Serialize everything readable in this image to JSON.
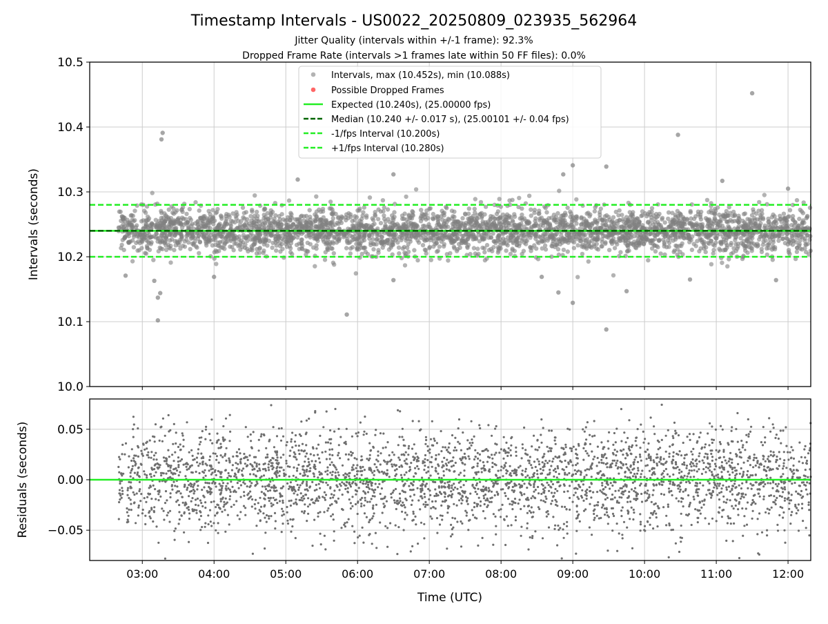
{
  "chart_data": {
    "type": "scatter",
    "title": "Timestamp Intervals - US0022_20250809_023935_562964",
    "subtitle_lines": [
      "Jitter Quality (intervals within +/-1 frame): 92.3%",
      "Dropped Frame Rate (intervals >1 frames late within 50 FF files): 0.0%"
    ],
    "xlabel": "Time (UTC)",
    "xticks": [
      "03:00",
      "04:00",
      "05:00",
      "06:00",
      "07:00",
      "08:00",
      "09:00",
      "10:00",
      "11:00",
      "12:00"
    ],
    "xlim": [
      "02:16",
      "12:19"
    ],
    "grid": true,
    "legend_placement": "top-center",
    "colors": {
      "points": "#808080",
      "dropped": "#ff6666",
      "expected": "#22ee22",
      "median": "#006400",
      "bounds": "#22ee22"
    },
    "top_panel": {
      "ylabel": "Intervals (seconds)",
      "ylim": [
        10.0,
        10.5
      ],
      "yticks": [
        "10.0",
        "10.1",
        "10.2",
        "10.3",
        "10.4",
        "10.5"
      ],
      "legend": [
        "Intervals, max (10.452s), min (10.088s)",
        "Possible Dropped Frames",
        "Expected (10.240s), (25.00000 fps)",
        "Median (10.240 +/- 0.017 s), (25.00101 +/- 0.04 fps)",
        "-1/fps Interval (10.200s)",
        "+1/fps Interval (10.280s)"
      ],
      "reference_lines": {
        "expected": 10.24,
        "median": 10.24,
        "lower": 10.2,
        "upper": 10.28
      },
      "series": [
        {
          "name": "Intervals, max (10.452s), min (10.088s)",
          "time_range": [
            "02:40",
            "12:19"
          ],
          "center": 10.24,
          "std": 0.017,
          "sample_count": 3400,
          "notable_points": [
            [
              "11:30",
              10.452
            ],
            [
              "03:17",
              10.391
            ],
            [
              "03:16",
              10.381
            ],
            [
              "10:28",
              10.388
            ],
            [
              "09:00",
              10.341
            ],
            [
              "09:28",
              10.339
            ],
            [
              "08:52",
              10.327
            ],
            [
              "06:30",
              10.327
            ],
            [
              "03:13",
              10.102
            ],
            [
              "03:13",
              10.137
            ],
            [
              "03:15",
              10.144
            ],
            [
              "05:51",
              10.111
            ],
            [
              "09:00",
              10.129
            ],
            [
              "08:48",
              10.145
            ],
            [
              "09:28",
              10.088
            ],
            [
              "03:10",
              10.163
            ],
            [
              "02:46",
              10.171
            ],
            [
              "04:00",
              10.169
            ],
            [
              "06:30",
              10.164
            ],
            [
              "08:34",
              10.169
            ],
            [
              "09:45",
              10.147
            ],
            [
              "10:38",
              10.165
            ],
            [
              "11:50",
              10.164
            ],
            [
              "12:00",
              10.305
            ],
            [
              "05:10",
              10.319
            ],
            [
              "11:05",
              10.317
            ]
          ]
        },
        {
          "name": "Possible Dropped Frames",
          "values": []
        }
      ]
    },
    "bottom_panel": {
      "ylabel": "Residuals (seconds)",
      "ylim": [
        -0.08,
        0.08
      ],
      "yticks": [
        "−0.05",
        "0.00",
        "0.05"
      ],
      "zero_line": 0.0,
      "series": [
        {
          "name": "Residuals",
          "time_range": [
            "02:40",
            "12:19"
          ],
          "center": 0.0,
          "std": 0.025,
          "sample_count": 3400
        }
      ]
    }
  }
}
